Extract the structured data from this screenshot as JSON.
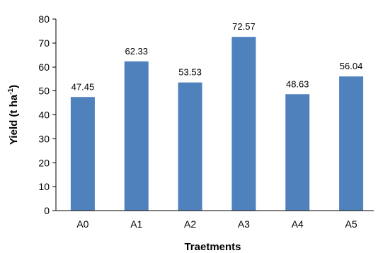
{
  "chart_data": {
    "type": "bar",
    "title": "",
    "xlabel": "Traetments",
    "ylabel": "Yield (t ha",
    "ylabel_sup": "-1",
    "ylabel_close": ")",
    "categories": [
      "A0",
      "A1",
      "A2",
      "A3",
      "A4",
      "A5"
    ],
    "values": [
      47.45,
      62.33,
      53.53,
      72.57,
      48.63,
      56.04
    ],
    "data_labels": [
      "47.45",
      "62.33",
      "53.53",
      "72.57",
      "48.63",
      "56.04"
    ],
    "ylim": [
      0,
      80
    ],
    "yticks": [
      0,
      10,
      20,
      30,
      40,
      50,
      60,
      70,
      80
    ],
    "grid": false,
    "legend": "none",
    "bar_color": "#4f81bd"
  }
}
